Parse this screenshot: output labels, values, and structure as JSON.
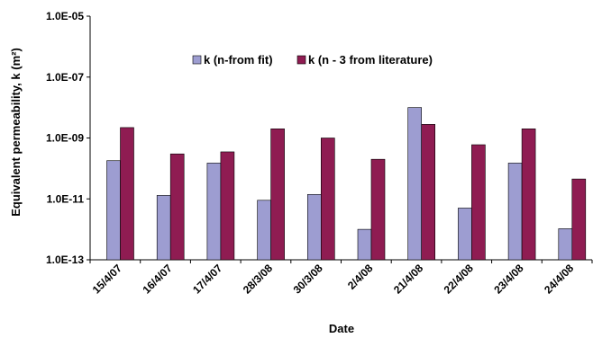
{
  "chart_data": {
    "type": "bar",
    "scale": "log",
    "ylim": [
      1e-13,
      1e-05
    ],
    "yticks": [
      "1.0E-13",
      "1.0E-11",
      "1.0E-09",
      "1.0E-07",
      "1.0E-05"
    ],
    "ylabel": "Equivalent permeability, k (m²)",
    "xlabel": "Date",
    "categories": [
      "15/4/07",
      "16/4/07",
      "17/4/07",
      "28/3/08",
      "30/3/08",
      "2/4/08",
      "21/4/08",
      "22/4/08",
      "23/4/08",
      "24/4/08"
    ],
    "series": [
      {
        "name": "k (n-from fit)",
        "color": "#9d9dd1",
        "values": [
          1.8e-10,
          1.3e-11,
          1.5e-10,
          9e-12,
          1.4e-11,
          1e-12,
          1e-08,
          5e-12,
          1.5e-10,
          1.05e-12
        ]
      },
      {
        "name": "k (n - 3 from literature)",
        "color": "#8f1c52",
        "values": [
          2.2e-09,
          3e-10,
          3.5e-10,
          2e-09,
          1e-09,
          2e-10,
          2.8e-09,
          6e-10,
          2e-09,
          4.5e-11
        ]
      }
    ],
    "legend_position": "top-center",
    "grid": false
  }
}
